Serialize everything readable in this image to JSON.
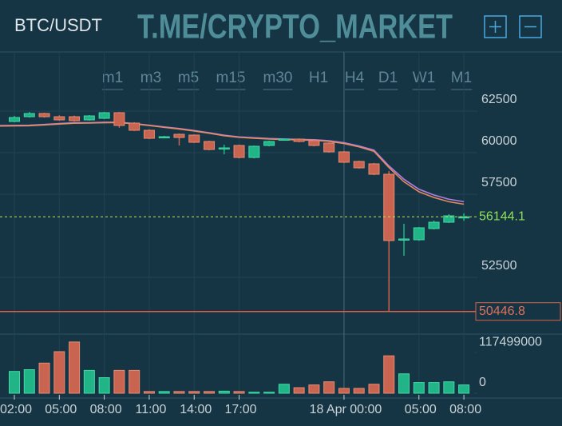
{
  "chart_data": {
    "type": "candlestick",
    "symbol": "BTC/USDT",
    "watermark": "T.ME/CRYPTO_MARKET",
    "timeframes": [
      "m1",
      "m3",
      "m5",
      "m15",
      "m30",
      "H1",
      "H4",
      "D1",
      "W1",
      "M1"
    ],
    "active_timeframe": 5,
    "categories": [
      "02:00",
      null,
      null,
      "05:00",
      null,
      null,
      "08:00",
      null,
      null,
      "11:00",
      null,
      null,
      "14:00",
      null,
      null,
      "17:00",
      null,
      null,
      null,
      null,
      null,
      null,
      "18 Apr 00:00",
      null,
      null,
      null,
      null,
      "05:00",
      null,
      null,
      "08:00"
    ],
    "highlight_category": 22,
    "open": [
      61875,
      62163,
      62356,
      62163,
      62163,
      61971,
      62067,
      62404,
      61779,
      61346,
      60913,
      61106,
      61058,
      60673,
      60240,
      60433,
      59712,
      60433,
      60769,
      60817,
      60721,
      60577,
      60048,
      59471,
      59327,
      58702,
      54760,
      54760,
      55433,
      55817,
      56100
    ],
    "high": [
      62210,
      62450,
      62400,
      62250,
      62230,
      62260,
      62450,
      62450,
      61830,
      61400,
      61010,
      61150,
      61100,
      60720,
      60480,
      60480,
      60430,
      60720,
      60860,
      60860,
      60770,
      60620,
      60100,
      59520,
      59380,
      58894,
      55721,
      55530,
      55914,
      56300,
      56350
    ],
    "low": [
      61830,
      62110,
      62110,
      61920,
      61870,
      61920,
      62020,
      61500,
      61300,
      60820,
      60860,
      60433,
      60580,
      60140,
      59900,
      59660,
      59660,
      60380,
      60720,
      60620,
      60380,
      60000,
      59380,
      59040,
      58650,
      50446.8,
      53798,
      54700,
      55380,
      55770,
      55900
    ],
    "close": [
      62115,
      62356,
      62163,
      61971,
      61923,
      62211,
      62404,
      61635,
      61346,
      60865,
      60961,
      60913,
      60625,
      60192,
      60288,
      59712,
      60385,
      60673,
      60817,
      60673,
      60433,
      60048,
      59423,
      59087,
      58702,
      54712,
      54808,
      55481,
      55817,
      56202,
      56144.1
    ],
    "volume": [
      63000000,
      68000000,
      87000000,
      120000000,
      148000000,
      66000000,
      45000000,
      66000000,
      66000000,
      5000000,
      5000000,
      5000000,
      5000000,
      5000000,
      6000000,
      5000000,
      3000000,
      3000000,
      26000000,
      16000000,
      24000000,
      33000000,
      14000000,
      14000000,
      26000000,
      108000000,
      56000000,
      31000000,
      31000000,
      33000000,
      24000000
    ],
    "lines": [
      {
        "color": "#b07fe0",
        "values": [
          61630,
          61650,
          61700,
          61750,
          61800,
          61800,
          61830,
          61830,
          61750,
          61650,
          61550,
          61450,
          61330,
          61200,
          61050,
          60950,
          60900,
          60850,
          60820,
          60800,
          60780,
          60720,
          60600,
          60400,
          60150,
          59200,
          58400,
          57800,
          57450,
          57200,
          57050
        ]
      },
      {
        "color": "#e5895f",
        "values": [
          61600,
          61620,
          61670,
          61720,
          61770,
          61780,
          61800,
          61810,
          61730,
          61630,
          61520,
          61420,
          61300,
          61170,
          61020,
          60920,
          60870,
          60820,
          60790,
          60770,
          60740,
          60680,
          60550,
          60350,
          60080,
          59100,
          58250,
          57650,
          57300,
          57050,
          56900
        ]
      }
    ],
    "last_price": 56144.1,
    "low_price": 50446.8,
    "up_color": "#21b487",
    "down_color": "#c8644f",
    "ylim": [
      49231,
      66058
    ],
    "yticks": [
      52500,
      57500,
      60000,
      62500
    ],
    "volume_ylim": [
      0,
      150000000
    ],
    "volume_yticks": [
      0,
      117499000
    ],
    "grid": true
  }
}
